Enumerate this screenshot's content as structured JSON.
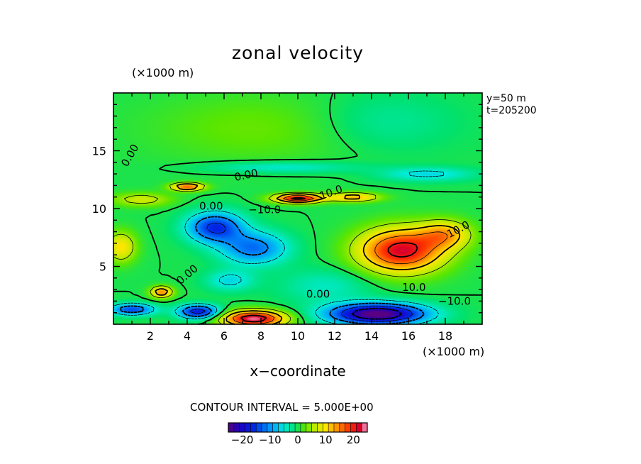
{
  "chart_data": {
    "type": "heatmap",
    "title": "zonal velocity",
    "xlabel": "x−coordinate",
    "x_unit": "(×1000 m)",
    "y_unit": "(×1000 m)",
    "annotations": [
      "y=50  m",
      "t=205200"
    ],
    "contour_interval_text": "CONTOUR INTERVAL = 5.000E+00",
    "xlim": [
      0,
      20
    ],
    "ylim": [
      0,
      20
    ],
    "x_ticks": [
      2,
      4,
      6,
      8,
      10,
      12,
      14,
      16,
      18
    ],
    "y_ticks": [
      5,
      10,
      15
    ],
    "colorbar": {
      "range": [
        -25,
        25
      ],
      "ticks": [
        -20,
        -10,
        0,
        10,
        20
      ]
    },
    "contour_labels": [
      {
        "text": "0.00",
        "x": 0.9,
        "y": 14.6,
        "rot": 60
      },
      {
        "text": "0.00",
        "x": 7.2,
        "y": 12.9,
        "rot": 12
      },
      {
        "text": "0.00",
        "x": 5.3,
        "y": 10.2,
        "rot": 0
      },
      {
        "text": "−10.0",
        "x": 8.2,
        "y": 9.9,
        "rot": 0
      },
      {
        "text": "10.0",
        "x": 11.8,
        "y": 11.4,
        "rot": 20
      },
      {
        "text": "10.0",
        "x": 18.7,
        "y": 8.2,
        "rot": 28
      },
      {
        "text": "0.00",
        "x": 4.0,
        "y": 4.3,
        "rot": 40
      },
      {
        "text": "10.0",
        "x": 16.3,
        "y": 3.2,
        "rot": 0
      },
      {
        "text": "0.00",
        "x": 11.1,
        "y": 2.6,
        "rot": 0
      },
      {
        "text": "−10.0",
        "x": 18.5,
        "y": 2.0,
        "rot": 0
      }
    ],
    "features": [
      {
        "x": 5.5,
        "y": 8.4,
        "value": -16,
        "sx": 1.5,
        "sy": 1.3
      },
      {
        "x": 7.6,
        "y": 6.6,
        "value": -12,
        "sx": 1.8,
        "sy": 1.4
      },
      {
        "x": 6.3,
        "y": 3.8,
        "value": -6,
        "sx": 1.3,
        "sy": 0.9
      },
      {
        "x": 14.3,
        "y": 0.9,
        "value": -26,
        "sx": 2.6,
        "sy": 0.9
      },
      {
        "x": 4.6,
        "y": 1.1,
        "value": -18,
        "sx": 1.1,
        "sy": 0.6
      },
      {
        "x": 1.0,
        "y": 1.3,
        "value": -14,
        "sx": 1.2,
        "sy": 0.5
      },
      {
        "x": 7.6,
        "y": 0.5,
        "value": 24,
        "sx": 1.7,
        "sy": 0.7
      },
      {
        "x": 15.6,
        "y": 6.4,
        "value": 22,
        "sx": 2.3,
        "sy": 1.9
      },
      {
        "x": 18.0,
        "y": 7.8,
        "value": 11,
        "sx": 1.4,
        "sy": 1.2
      },
      {
        "x": 10.0,
        "y": 10.9,
        "value": 22,
        "sx": 1.3,
        "sy": 0.4
      },
      {
        "x": 13.0,
        "y": 11.0,
        "value": 12,
        "sx": 1.4,
        "sy": 0.4
      },
      {
        "x": 4.0,
        "y": 11.9,
        "value": 16,
        "sx": 0.9,
        "sy": 0.35
      },
      {
        "x": 1.5,
        "y": 10.8,
        "value": 7,
        "sx": 1.6,
        "sy": 0.6
      },
      {
        "x": 0.4,
        "y": 6.7,
        "value": 10,
        "sx": 0.8,
        "sy": 1.3
      },
      {
        "x": 2.6,
        "y": 2.8,
        "value": 14,
        "sx": 0.6,
        "sy": 0.5
      },
      {
        "x": 9.0,
        "y": 13.6,
        "value": -5,
        "sx": 4.0,
        "sy": 0.5
      },
      {
        "x": 17.0,
        "y": 13.0,
        "value": -6,
        "sx": 2.5,
        "sy": 0.6
      },
      {
        "x": 8.0,
        "y": 17.0,
        "value": 3,
        "sx": 6.0,
        "sy": 3.0
      },
      {
        "x": 14.5,
        "y": 17.5,
        "value": -3,
        "sx": 4.0,
        "sy": 2.5
      },
      {
        "x": 11.5,
        "y": 3.3,
        "value": -4,
        "sx": 2.5,
        "sy": 1.5
      }
    ]
  }
}
